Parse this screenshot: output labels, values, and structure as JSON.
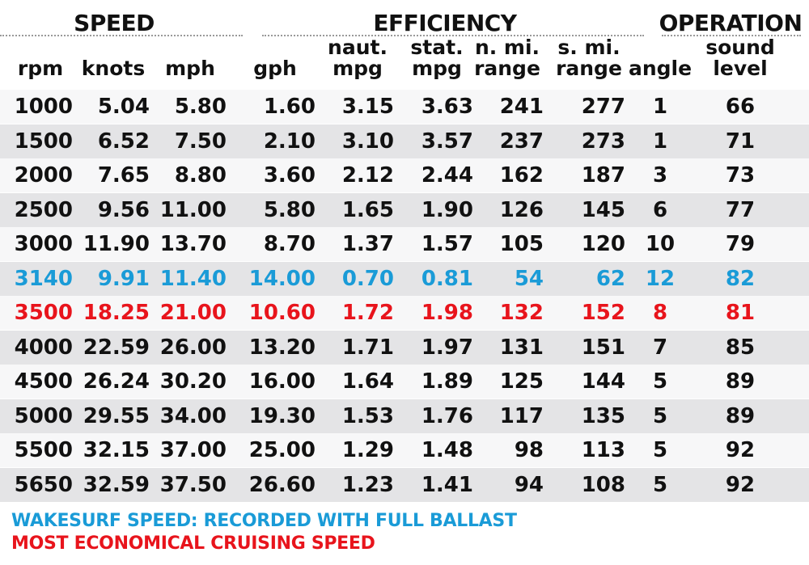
{
  "groups": [
    {
      "label": "SPEED"
    },
    {
      "label": "EFFICIENCY"
    },
    {
      "label": "OPERATION"
    }
  ],
  "columns": [
    {
      "line1": "",
      "line2": "rpm"
    },
    {
      "line1": "",
      "line2": "knots"
    },
    {
      "line1": "",
      "line2": "mph"
    },
    {
      "line1": "",
      "line2": "gph"
    },
    {
      "line1": "naut.",
      "line2": "mpg"
    },
    {
      "line1": "stat.",
      "line2": "mpg"
    },
    {
      "line1": "n. mi.",
      "line2": "range"
    },
    {
      "line1": "s. mi.",
      "line2": "range"
    },
    {
      "line1": "",
      "line2": "angle"
    },
    {
      "line1": "sound",
      "line2": "level"
    }
  ],
  "rows": [
    [
      "1000",
      "5.04",
      "5.80",
      "1.60",
      "3.15",
      "3.63",
      "241",
      "277",
      "1",
      "66"
    ],
    [
      "1500",
      "6.52",
      "7.50",
      "2.10",
      "3.10",
      "3.57",
      "237",
      "273",
      "1",
      "71"
    ],
    [
      "2000",
      "7.65",
      "8.80",
      "3.60",
      "2.12",
      "2.44",
      "162",
      "187",
      "3",
      "73"
    ],
    [
      "2500",
      "9.56",
      "11.00",
      "5.80",
      "1.65",
      "1.90",
      "126",
      "145",
      "6",
      "77"
    ],
    [
      "3000",
      "11.90",
      "13.70",
      "8.70",
      "1.37",
      "1.57",
      "105",
      "120",
      "10",
      "79"
    ],
    [
      "3140",
      "9.91",
      "11.40",
      "14.00",
      "0.70",
      "0.81",
      "54",
      "62",
      "12",
      "82"
    ],
    [
      "3500",
      "18.25",
      "21.00",
      "10.60",
      "1.72",
      "1.98",
      "132",
      "152",
      "8",
      "81"
    ],
    [
      "4000",
      "22.59",
      "26.00",
      "13.20",
      "1.71",
      "1.97",
      "131",
      "151",
      "7",
      "85"
    ],
    [
      "4500",
      "26.24",
      "30.20",
      "16.00",
      "1.64",
      "1.89",
      "125",
      "144",
      "5",
      "89"
    ],
    [
      "5000",
      "29.55",
      "34.00",
      "19.30",
      "1.53",
      "1.76",
      "117",
      "135",
      "5",
      "89"
    ],
    [
      "5500",
      "32.15",
      "37.00",
      "25.00",
      "1.29",
      "1.48",
      "98",
      "113",
      "5",
      "92"
    ],
    [
      "5650",
      "32.59",
      "37.50",
      "26.60",
      "1.23",
      "1.41",
      "94",
      "108",
      "5",
      "92"
    ]
  ],
  "row_styles": [
    "white",
    "alt",
    "white",
    "alt",
    "white",
    "alt",
    "white",
    "alt",
    "white",
    "alt",
    "white",
    "alt"
  ],
  "highlights": {
    "wakesurf_row": 5,
    "economical_row": 6
  },
  "colors": {
    "wakesurf": "#1a9bd7",
    "economical": "#e8141c",
    "text": "#111111",
    "stripe": "#e4e4e6"
  },
  "legend": {
    "wakesurf": "WAKESURF SPEED: RECORDED WITH FULL BALLAST",
    "economical": "MOST ECONOMICAL CRUISING SPEED"
  },
  "chart_data": {
    "type": "table",
    "title": "",
    "column_groups": [
      {
        "name": "SPEED",
        "columns": [
          "rpm",
          "knots",
          "mph"
        ]
      },
      {
        "name": "EFFICIENCY",
        "columns": [
          "gph",
          "naut. mpg",
          "stat. mpg",
          "n. mi. range",
          "s. mi. range"
        ]
      },
      {
        "name": "OPERATION",
        "columns": [
          "angle",
          "sound level"
        ]
      }
    ],
    "headers": [
      "rpm",
      "knots",
      "mph",
      "gph",
      "naut. mpg",
      "stat. mpg",
      "n. mi. range",
      "s. mi. range",
      "angle",
      "sound level"
    ],
    "rows": [
      [
        1000,
        5.04,
        5.8,
        1.6,
        3.15,
        3.63,
        241,
        277,
        1,
        66
      ],
      [
        1500,
        6.52,
        7.5,
        2.1,
        3.1,
        3.57,
        237,
        273,
        1,
        71
      ],
      [
        2000,
        7.65,
        8.8,
        3.6,
        2.12,
        2.44,
        162,
        187,
        3,
        73
      ],
      [
        2500,
        9.56,
        11.0,
        5.8,
        1.65,
        1.9,
        126,
        145,
        6,
        77
      ],
      [
        3000,
        11.9,
        13.7,
        8.7,
        1.37,
        1.57,
        105,
        120,
        10,
        79
      ],
      [
        3140,
        9.91,
        11.4,
        14.0,
        0.7,
        0.81,
        54,
        62,
        12,
        82
      ],
      [
        3500,
        18.25,
        21.0,
        10.6,
        1.72,
        1.98,
        132,
        152,
        8,
        81
      ],
      [
        4000,
        22.59,
        26.0,
        13.2,
        1.71,
        1.97,
        131,
        151,
        7,
        85
      ],
      [
        4500,
        26.24,
        30.2,
        16.0,
        1.64,
        1.89,
        125,
        144,
        5,
        89
      ],
      [
        5000,
        29.55,
        34.0,
        19.3,
        1.53,
        1.76,
        117,
        135,
        5,
        89
      ],
      [
        5500,
        32.15,
        37.0,
        25.0,
        1.29,
        1.48,
        98,
        113,
        5,
        92
      ],
      [
        5650,
        32.59,
        37.5,
        26.6,
        1.23,
        1.41,
        94,
        108,
        5,
        92
      ]
    ],
    "annotations": [
      {
        "row_rpm": 3140,
        "color": "#1a9bd7",
        "note": "WAKESURF SPEED: RECORDED WITH FULL BALLAST"
      },
      {
        "row_rpm": 3500,
        "color": "#e8141c",
        "note": "MOST ECONOMICAL CRUISING SPEED"
      }
    ]
  }
}
